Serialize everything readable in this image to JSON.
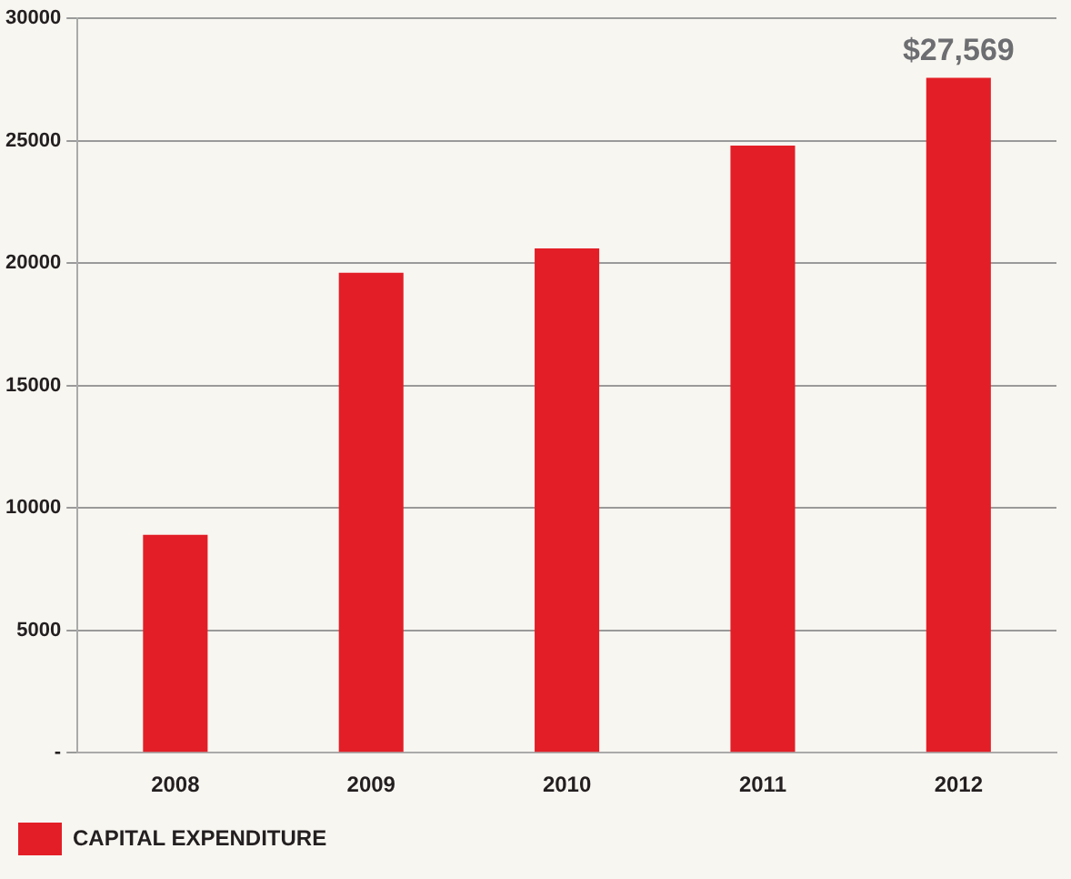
{
  "chart_data": {
    "type": "bar",
    "categories": [
      "2008",
      "2009",
      "2010",
      "2011",
      "2012"
    ],
    "series": [
      {
        "name": "CAPITAL EXPENDITURE",
        "color": "#e31e26",
        "values": [
          8900,
          19600,
          20600,
          24800,
          27569
        ],
        "value_labels": [
          null,
          null,
          null,
          null,
          "$27,569"
        ]
      }
    ],
    "ylim": [
      0,
      30000
    ],
    "yticks": [
      {
        "value": 0,
        "label": "-"
      },
      5000,
      10000,
      15000,
      20000,
      25000,
      30000
    ],
    "grid": "y",
    "legend": "bottom left"
  }
}
